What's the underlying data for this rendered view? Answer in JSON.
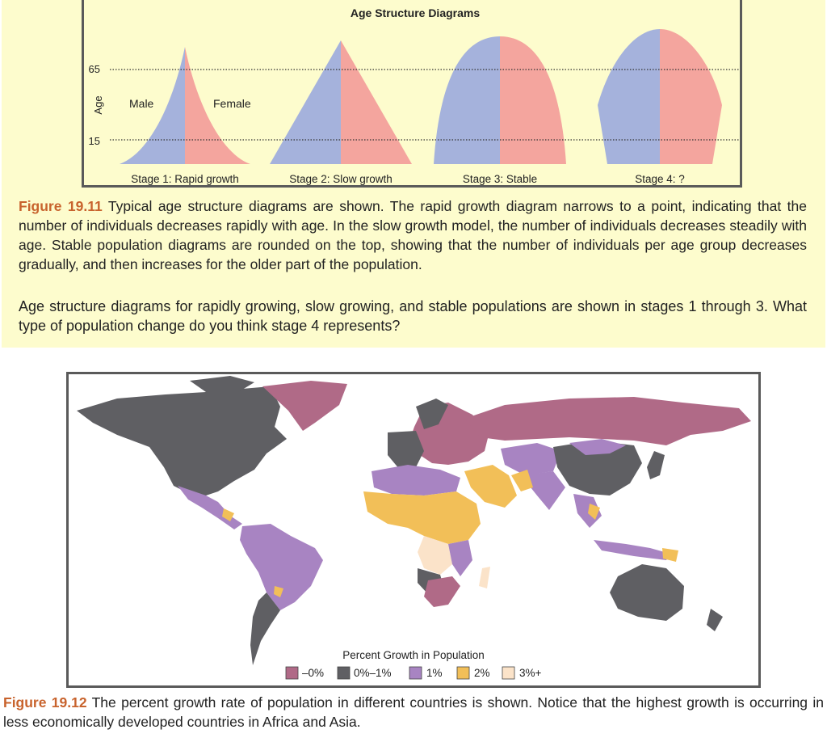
{
  "figure1": {
    "title": "Age Structure Diagrams",
    "y_axis_label": "Age",
    "tick_65": "65",
    "tick_15": "15",
    "male_label": "Male",
    "female_label": "Female",
    "stages": [
      "Stage 1: Rapid growth",
      "Stage 2: Slow growth",
      "Stage 3: Stable",
      "Stage 4: ?"
    ],
    "colors": {
      "male": "#a5b2dc",
      "female": "#f4a59e",
      "background": "#fdfccd"
    },
    "caption_label": "Figure 19.11",
    "caption_text": " Typical age structure diagrams are shown. The rapid growth diagram narrows to a point, indicating that the number of individuals decreases rapidly with age. In the slow growth model, the number of individuals decreases steadily with age. Stable population diagrams are rounded on the top, showing that the number of individuals per age group decreases gradually, and then increases for the older part of the population."
  },
  "question_text": "Age structure diagrams for rapidly growing, slow growing, and stable populations are shown in stages 1 through 3. What type of population change do you think stage 4 represents?",
  "figure2": {
    "legend_title": "Percent Growth in Population",
    "legend": [
      {
        "label": "–0%",
        "color": "#b06a87"
      },
      {
        "label": "0%–1%",
        "color": "#5f5f63"
      },
      {
        "label": "1%",
        "color": "#a884c2"
      },
      {
        "label": "2%",
        "color": "#f2bf58"
      },
      {
        "label": "3%+",
        "color": "#fbe3c9"
      }
    ],
    "caption_label": "Figure 19.12",
    "caption_text": " The percent growth rate of population in different countries is shown. Notice that the highest growth is occurring in less economically developed countries in Africa and Asia."
  }
}
